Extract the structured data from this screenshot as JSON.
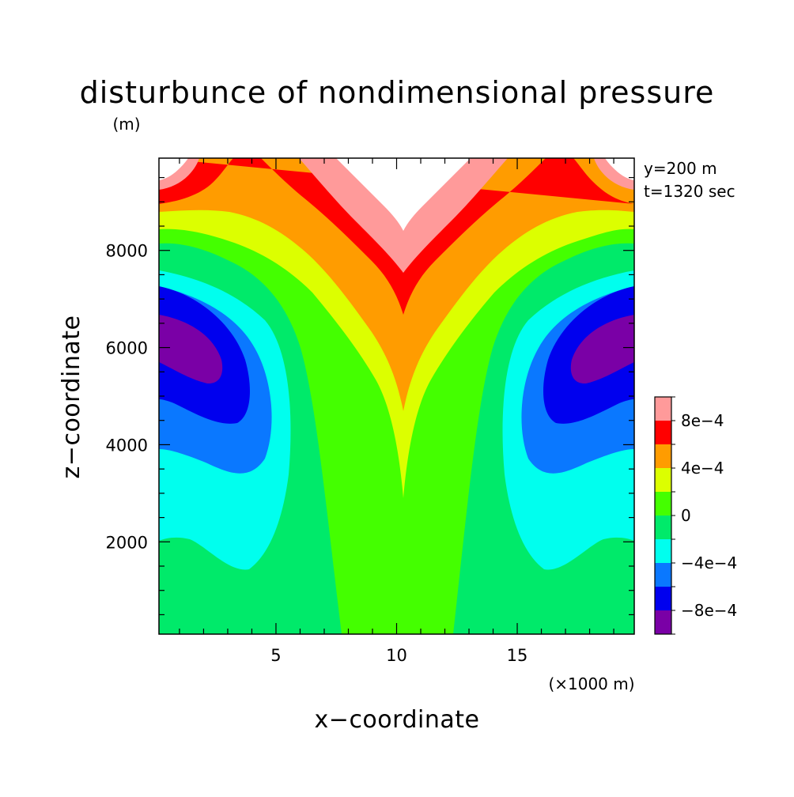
{
  "chart_data": {
    "type": "heatmap",
    "title": "disturbunce of nondimensional pressure",
    "xlabel": "x−coordinate",
    "ylabel": "z−coordinate",
    "y_unit": "(m)",
    "x_unit": "(×1000 m)",
    "xlim": [
      0.15,
      19.85
    ],
    "ylim": [
      100,
      9900
    ],
    "x_ticks": [
      5,
      10,
      15
    ],
    "x_tick_labels": [
      "5",
      "10",
      "15"
    ],
    "y_ticks": [
      2000,
      4000,
      6000,
      8000
    ],
    "y_tick_labels": [
      "2000",
      "4000",
      "6000",
      "8000"
    ],
    "annotations": [
      "y=200 m",
      "t=1320 sec"
    ],
    "grid": false,
    "legend": "colorbar-right",
    "contour_levels": [
      -0.001,
      -0.0008,
      -0.0006,
      -0.0004,
      -0.0002,
      0,
      0.0002,
      0.0004,
      0.0006,
      0.0008,
      0.001
    ],
    "colorbar_labels": [
      {
        "value": 0.0008,
        "text": "8e−4"
      },
      {
        "value": 0.0004,
        "text": "4e−4"
      },
      {
        "value": 0,
        "text": "0"
      },
      {
        "value": -0.0004,
        "text": "−4e−4"
      },
      {
        "value": -0.0008,
        "text": "−8e−4"
      }
    ],
    "colors": [
      "#7a00a6",
      "#0000ee",
      "#0a78ff",
      "#00ffee",
      "#00ea6a",
      "#44ff00",
      "#dcff00",
      "#ff9c00",
      "#ff0000",
      "#ff9a9a",
      "#ffffff"
    ]
  }
}
